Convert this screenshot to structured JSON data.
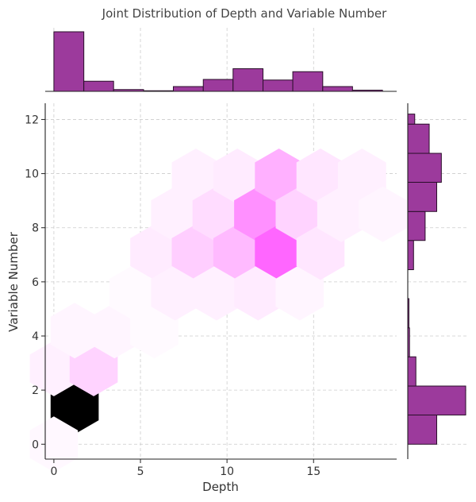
{
  "chart_data": {
    "type": "hexbin-joint",
    "title": "Joint Distribution of Depth and Variable Number",
    "xlabel": "Depth",
    "ylabel": "Variable Number",
    "xlim": [
      -0.5,
      19.8
    ],
    "ylim": [
      -0.55,
      12.6
    ],
    "xticks": [
      0,
      5,
      10,
      15
    ],
    "yticks": [
      0,
      2,
      4,
      6,
      8,
      10,
      12
    ],
    "grid": true,
    "colors": {
      "marginal_bar": "#9c3a9c",
      "hex_max": "#ff66ff",
      "hex_peak": "#000000"
    },
    "hexbins": [
      {
        "x": 1.2,
        "y": 1.4,
        "count": 100
      },
      {
        "x": 0,
        "y": 0.0,
        "count": 3
      },
      {
        "x": 0,
        "y": 2.8,
        "count": 6
      },
      {
        "x": 2.3,
        "y": 2.8,
        "count": 18
      },
      {
        "x": 1.2,
        "y": 4.2,
        "count": 4
      },
      {
        "x": 3.5,
        "y": 4.2,
        "count": 4
      },
      {
        "x": 4.6,
        "y": 5.6,
        "count": 2
      },
      {
        "x": 5.8,
        "y": 4.2,
        "count": 2
      },
      {
        "x": 5.8,
        "y": 7.1,
        "count": 8
      },
      {
        "x": 7.0,
        "y": 5.6,
        "count": 6
      },
      {
        "x": 7.0,
        "y": 8.5,
        "count": 6
      },
      {
        "x": 8.2,
        "y": 7.1,
        "count": 20
      },
      {
        "x": 8.2,
        "y": 9.9,
        "count": 6
      },
      {
        "x": 9.4,
        "y": 5.6,
        "count": 6
      },
      {
        "x": 9.4,
        "y": 8.5,
        "count": 14
      },
      {
        "x": 10.6,
        "y": 7.1,
        "count": 28
      },
      {
        "x": 10.6,
        "y": 9.9,
        "count": 8
      },
      {
        "x": 11.8,
        "y": 5.6,
        "count": 8
      },
      {
        "x": 11.8,
        "y": 8.5,
        "count": 45
      },
      {
        "x": 13.0,
        "y": 7.1,
        "count": 62
      },
      {
        "x": 13.0,
        "y": 9.9,
        "count": 32
      },
      {
        "x": 14.2,
        "y": 5.6,
        "count": 4
      },
      {
        "x": 14.2,
        "y": 8.5,
        "count": 18
      },
      {
        "x": 15.4,
        "y": 7.1,
        "count": 10
      },
      {
        "x": 15.4,
        "y": 9.9,
        "count": 10
      },
      {
        "x": 16.6,
        "y": 8.5,
        "count": 6
      },
      {
        "x": 17.8,
        "y": 9.9,
        "count": 6
      },
      {
        "x": 19.0,
        "y": 8.5,
        "count": 4
      }
    ],
    "x_marginal": {
      "bin_edges": [
        0,
        1.73,
        3.45,
        5.18,
        6.9,
        8.63,
        10.35,
        12.08,
        13.8,
        15.53,
        17.25,
        18.98
      ],
      "counts": [
        100,
        17,
        3,
        1,
        8,
        20,
        38,
        19,
        33,
        8,
        2
      ]
    },
    "y_marginal": {
      "bin_edges": [
        0,
        1.08,
        2.15,
        3.23,
        4.3,
        5.38,
        6.45,
        7.53,
        8.6,
        9.68,
        10.75,
        11.83,
        12.2
      ],
      "counts": [
        50,
        100,
        14,
        3,
        2,
        0,
        10,
        30,
        50,
        58,
        37,
        12
      ]
    }
  }
}
